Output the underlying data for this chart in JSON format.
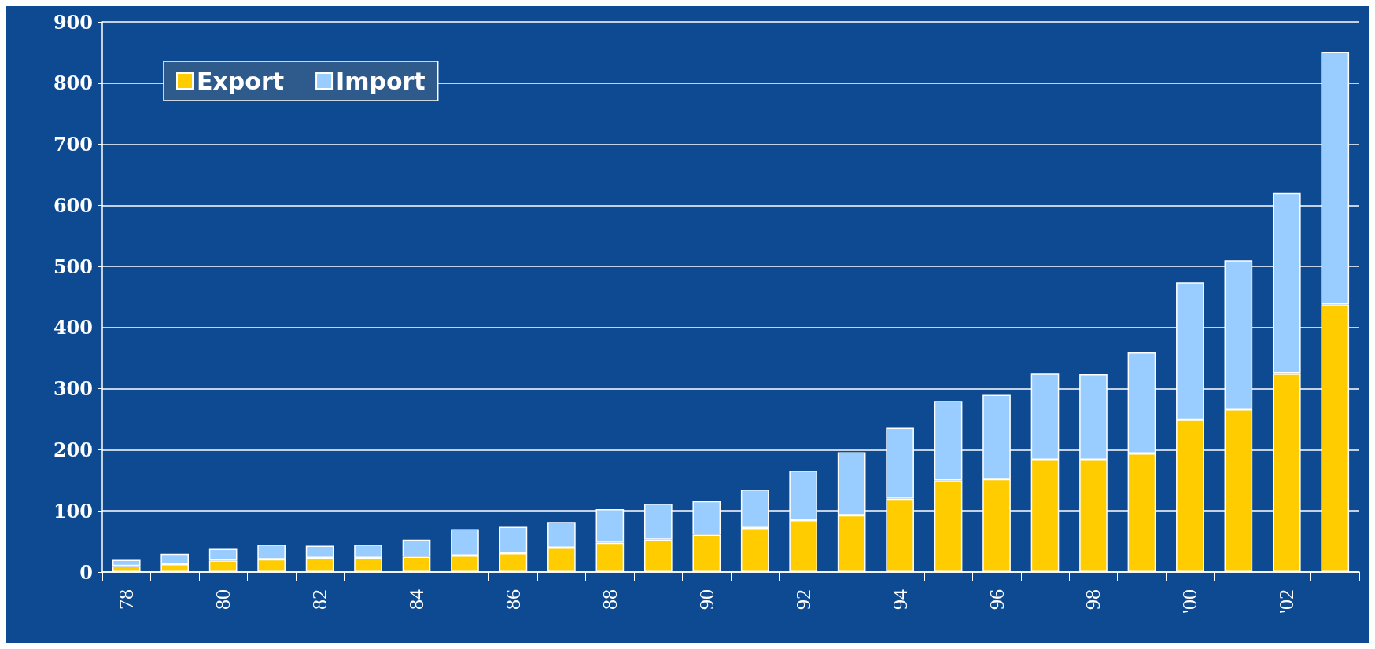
{
  "chart_data": {
    "type": "bar",
    "stacked": true,
    "categories": [
      "78",
      null,
      "80",
      null,
      "82",
      null,
      "84",
      null,
      "86",
      null,
      "88",
      null,
      "90",
      null,
      "92",
      null,
      "94",
      null,
      "96",
      null,
      "98",
      null,
      "'00",
      null,
      "'02",
      null
    ],
    "series": [
      {
        "name": "Export",
        "color": "#ffcc00",
        "values": [
          10,
          13,
          19,
          21,
          23,
          23,
          25,
          27,
          31,
          40,
          48,
          53,
          61,
          72,
          85,
          93,
          120,
          150,
          152,
          184,
          184,
          194,
          249,
          266,
          325,
          438
        ]
      },
      {
        "name": "Import",
        "color": "#99ccff",
        "values": [
          10,
          17,
          19,
          24,
          20,
          22,
          28,
          43,
          43,
          42,
          55,
          59,
          55,
          63,
          81,
          103,
          116,
          130,
          138,
          141,
          140,
          166,
          225,
          244,
          295,
          413
        ]
      }
    ],
    "ylim": [
      0,
      900
    ],
    "yticks": [
      0,
      100,
      200,
      300,
      400,
      500,
      600,
      700,
      800,
      900
    ],
    "grid": "y",
    "legend": "top left"
  }
}
